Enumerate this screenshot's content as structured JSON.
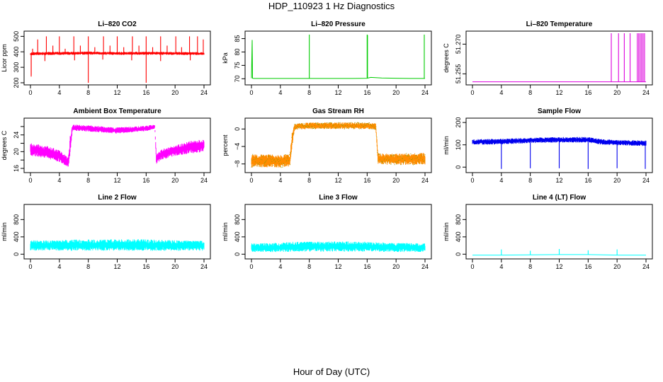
{
  "title": "HDP_110923  1 Hz Diagnostics",
  "x_axis_title": "Hour of Day (UTC)",
  "chart_data": [
    {
      "id": "co2",
      "type": "line",
      "title": "Li–820 CO2",
      "ylabel": "Licor ppm",
      "color": "#ff0000",
      "xlim": [
        0,
        24
      ],
      "ylim": [
        200,
        520
      ],
      "x_ticks": [
        0,
        4,
        8,
        12,
        16,
        20,
        24
      ],
      "y_ticks": [
        200,
        300,
        400,
        500
      ],
      "y_tick_labels": [
        "200",
        "300",
        "400",
        "500"
      ],
      "series": [
        {
          "name": "band",
          "mode": "band",
          "x": [
            0,
            0.3,
            4,
            8,
            12,
            16,
            20,
            24
          ],
          "lo": [
            375,
            378,
            380,
            382,
            380,
            381,
            380,
            378
          ],
          "hi": [
            395,
            398,
            400,
            402,
            400,
            401,
            400,
            398
          ]
        },
        {
          "name": "spikes",
          "mode": "spikes",
          "x": [
            0.1,
            0.3,
            1.0,
            2.2,
            3.1,
            4.0,
            4.8,
            6.0,
            6.9,
            8.0,
            8.9,
            10.1,
            11.0,
            12.0,
            12.9,
            14.1,
            15.0,
            16.0,
            16.9,
            18.0,
            18.9,
            20.1,
            20.9,
            22.0,
            23.1,
            23.9
          ],
          "base": [
            385,
            385,
            385,
            385,
            385,
            385,
            385,
            385,
            385,
            385,
            385,
            385,
            385,
            385,
            385,
            385,
            385,
            385,
            385,
            385,
            385,
            385,
            385,
            385,
            385,
            385
          ],
          "y": [
            250,
            420,
            480,
            500,
            440,
            500,
            420,
            500,
            440,
            500,
            430,
            500,
            440,
            500,
            430,
            500,
            440,
            500,
            430,
            500,
            440,
            500,
            430,
            500,
            500,
            480
          ]
        },
        {
          "name": "dips",
          "mode": "spikes",
          "x": [
            8.0,
            16.0,
            0.1,
            2.0,
            6.1,
            10.0,
            14.0,
            18.0,
            22.1
          ],
          "base": [
            385,
            385,
            385,
            385,
            385,
            385,
            385,
            385,
            385
          ],
          "y": [
            200,
            200,
            240,
            340,
            345,
            350,
            345,
            340,
            345
          ]
        }
      ]
    },
    {
      "id": "pressure",
      "type": "line",
      "title": "Li–820 Pressure",
      "ylabel": "kPa",
      "color": "#00cc00",
      "xlim": [
        0,
        24
      ],
      "ylim": [
        68.5,
        87
      ],
      "x_ticks": [
        0,
        4,
        8,
        12,
        16,
        20,
        24
      ],
      "y_ticks": [
        70,
        75,
        80,
        85
      ],
      "y_tick_labels": [
        "70",
        "75",
        "80",
        "85"
      ],
      "series": [
        {
          "name": "base",
          "mode": "line",
          "x": [
            0,
            0.1,
            0.15,
            0.3,
            1,
            2,
            4,
            6,
            8,
            10,
            12,
            14,
            16,
            16.5,
            18,
            20,
            22,
            24
          ],
          "y": [
            70.2,
            84.5,
            70.2,
            70.1,
            70.1,
            70.1,
            70.1,
            70.1,
            70.1,
            70.1,
            70.1,
            70.1,
            70.2,
            70.5,
            70.3,
            70.2,
            70.1,
            70.1
          ]
        },
        {
          "name": "spikes",
          "mode": "spikes",
          "x": [
            8.0,
            16.0,
            16.05,
            23.9
          ],
          "base": [
            70.2,
            70.2,
            70.2,
            70.2
          ],
          "y": [
            86.5,
            86.5,
            86.3,
            86.5
          ]
        }
      ]
    },
    {
      "id": "temp",
      "type": "line",
      "title": "Li–820 Temperature",
      "ylabel": "degrees C",
      "color": "#dd00dd",
      "xlim": [
        0,
        24
      ],
      "ylim": [
        51.2505,
        51.2755
      ],
      "x_ticks": [
        0,
        4,
        8,
        12,
        16,
        20,
        24
      ],
      "y_ticks": [
        51.255,
        51.27
      ],
      "y_tick_labels": [
        "51.255",
        "51.270"
      ],
      "series": [
        {
          "name": "base",
          "mode": "line",
          "x": [
            0,
            24
          ],
          "y": [
            51.251,
            51.251
          ]
        },
        {
          "name": "spikes",
          "mode": "spikes",
          "x": [
            19.2,
            20.2,
            21.0,
            21.8,
            22.8,
            23.0,
            23.2,
            23.4,
            23.6,
            23.8
          ],
          "base": [
            51.251,
            51.251,
            51.251,
            51.251,
            51.251,
            51.251,
            51.251,
            51.251,
            51.251,
            51.251
          ],
          "y": [
            51.2755,
            51.2755,
            51.2755,
            51.2755,
            51.2755,
            51.2755,
            51.2755,
            51.2755,
            51.2755,
            51.2755
          ]
        }
      ]
    },
    {
      "id": "ambient",
      "type": "line",
      "title": "Ambient Box Temperature",
      "ylabel": "degrees C",
      "color": "#ff00ff",
      "xlim": [
        0,
        24
      ],
      "ylim": [
        15.5,
        27.5
      ],
      "x_ticks": [
        0,
        4,
        8,
        12,
        16,
        20,
        24
      ],
      "y_ticks": [
        16,
        18,
        20,
        22,
        24,
        26
      ],
      "y_tick_labels": [
        "16",
        "",
        "20",
        "",
        "24",
        ""
      ],
      "series": [
        {
          "name": "band",
          "mode": "band",
          "x": [
            0,
            2,
            4,
            5.2,
            5.5,
            5.8,
            8,
            12,
            16,
            17.2,
            17.4,
            18,
            20,
            22,
            24
          ],
          "lo": [
            19.0,
            18.5,
            17.5,
            16.2,
            18.5,
            25.0,
            24.8,
            24.3,
            24.9,
            25.5,
            17.0,
            18.0,
            19.0,
            19.5,
            20.0
          ],
          "hi": [
            22.0,
            21.5,
            20.5,
            18.5,
            24.0,
            26.5,
            26.3,
            25.8,
            26.2,
            26.5,
            19.5,
            20.5,
            21.5,
            22.5,
            23.0
          ]
        }
      ]
    },
    {
      "id": "rh",
      "type": "line",
      "title": "Gas Stream RH",
      "ylabel": "percent",
      "color": "#ff8c00",
      "color2": "#999900",
      "xlim": [
        0,
        24
      ],
      "ylim": [
        -9.5,
        2
      ],
      "x_ticks": [
        0,
        4,
        8,
        12,
        16,
        20,
        24
      ],
      "y_ticks": [
        -8,
        -4,
        0
      ],
      "y_tick_labels": [
        "−8",
        "−4",
        "0"
      ],
      "series": [
        {
          "name": "band",
          "mode": "band",
          "x": [
            0,
            2,
            4,
            5.3,
            5.6,
            6,
            8,
            12,
            16,
            17.2,
            17.5,
            18,
            20,
            22,
            24
          ],
          "lo": [
            -8.8,
            -8.8,
            -8.8,
            -8.8,
            -4.5,
            -0.2,
            0,
            0,
            0,
            -0.2,
            -8.0,
            -8.2,
            -8.2,
            -8.2,
            -8.2
          ],
          "hi": [
            -5.8,
            -5.8,
            -5.8,
            -5.8,
            -1.0,
            1.3,
            1.5,
            1.5,
            1.5,
            1.3,
            -5.5,
            -5.6,
            -5.6,
            -5.6,
            -5.4
          ]
        }
      ]
    },
    {
      "id": "sample",
      "type": "line",
      "title": "Sample Flow",
      "ylabel": "ml/min",
      "color": "#0000ee",
      "xlim": [
        0,
        24
      ],
      "ylim": [
        -15,
        210
      ],
      "x_ticks": [
        0,
        4,
        8,
        12,
        16,
        20,
        24
      ],
      "y_ticks": [
        0,
        100,
        200
      ],
      "y_tick_labels": [
        "0",
        "100",
        "200"
      ],
      "series": [
        {
          "name": "band",
          "mode": "band",
          "x": [
            0,
            4,
            8,
            12,
            16,
            18,
            20,
            24
          ],
          "lo": [
            100,
            102,
            108,
            110,
            110,
            100,
            98,
            95
          ],
          "hi": [
            125,
            127,
            132,
            135,
            135,
            125,
            122,
            120
          ]
        },
        {
          "name": "dips",
          "mode": "spikes",
          "x": [
            4.0,
            8.0,
            12.0,
            16.0,
            20.0,
            23.9
          ],
          "base": [
            110,
            110,
            112,
            112,
            110,
            108
          ],
          "y": [
            -8,
            -5,
            -5,
            -8,
            -5,
            -8
          ]
        }
      ]
    },
    {
      "id": "line2",
      "type": "line",
      "title": "Line 2 Flow",
      "ylabel": "ml/min",
      "color": "#00ffff",
      "xlim": [
        0,
        24
      ],
      "ylim": [
        -60,
        1100
      ],
      "x_ticks": [
        0,
        4,
        8,
        12,
        16,
        20,
        24
      ],
      "y_ticks": [
        0,
        400,
        800
      ],
      "y_tick_labels": [
        "0",
        "400",
        "800"
      ],
      "series": [
        {
          "name": "band",
          "mode": "band",
          "x": [
            0,
            4,
            5.5,
            12,
            16,
            17.5,
            20,
            24
          ],
          "lo": [
            80,
            80,
            80,
            80,
            80,
            80,
            80,
            80
          ],
          "hi": [
            320,
            320,
            340,
            345,
            345,
            335,
            320,
            310
          ]
        }
      ]
    },
    {
      "id": "line3",
      "type": "line",
      "title": "Line 3 Flow",
      "ylabel": "ml/min",
      "color": "#00ffff",
      "xlim": [
        0,
        24
      ],
      "ylim": [
        -60,
        1100
      ],
      "x_ticks": [
        0,
        4,
        8,
        12,
        16,
        20,
        24
      ],
      "y_ticks": [
        0,
        400,
        800
      ],
      "y_tick_labels": [
        "0",
        "400",
        "800"
      ],
      "series": [
        {
          "name": "band",
          "mode": "band",
          "x": [
            0,
            4,
            5.5,
            12,
            16,
            18,
            20,
            24
          ],
          "lo": [
            50,
            50,
            55,
            60,
            60,
            55,
            50,
            50
          ],
          "hi": [
            250,
            260,
            285,
            295,
            290,
            270,
            260,
            250
          ]
        }
      ]
    },
    {
      "id": "line4",
      "type": "line",
      "title": "Line 4 (LT) Flow",
      "ylabel": "ml/min",
      "color": "#00ffff",
      "xlim": [
        0,
        24
      ],
      "ylim": [
        -60,
        1100
      ],
      "x_ticks": [
        0,
        4,
        8,
        12,
        16,
        20,
        24
      ],
      "y_ticks": [
        0,
        400,
        800
      ],
      "y_tick_labels": [
        "0",
        "400",
        "800"
      ],
      "series": [
        {
          "name": "base",
          "mode": "line",
          "x": [
            0,
            4,
            8,
            12,
            16,
            18,
            20,
            24
          ],
          "y": [
            -20,
            -20,
            -15,
            -10,
            -10,
            -15,
            -20,
            -20
          ]
        },
        {
          "name": "spikes",
          "mode": "spikes",
          "x": [
            4.0,
            8.0,
            12.0,
            16.0,
            20.0
          ],
          "base": [
            -20,
            -15,
            -10,
            -10,
            -20
          ],
          "y": [
            110,
            80,
            120,
            90,
            110
          ]
        }
      ]
    }
  ]
}
